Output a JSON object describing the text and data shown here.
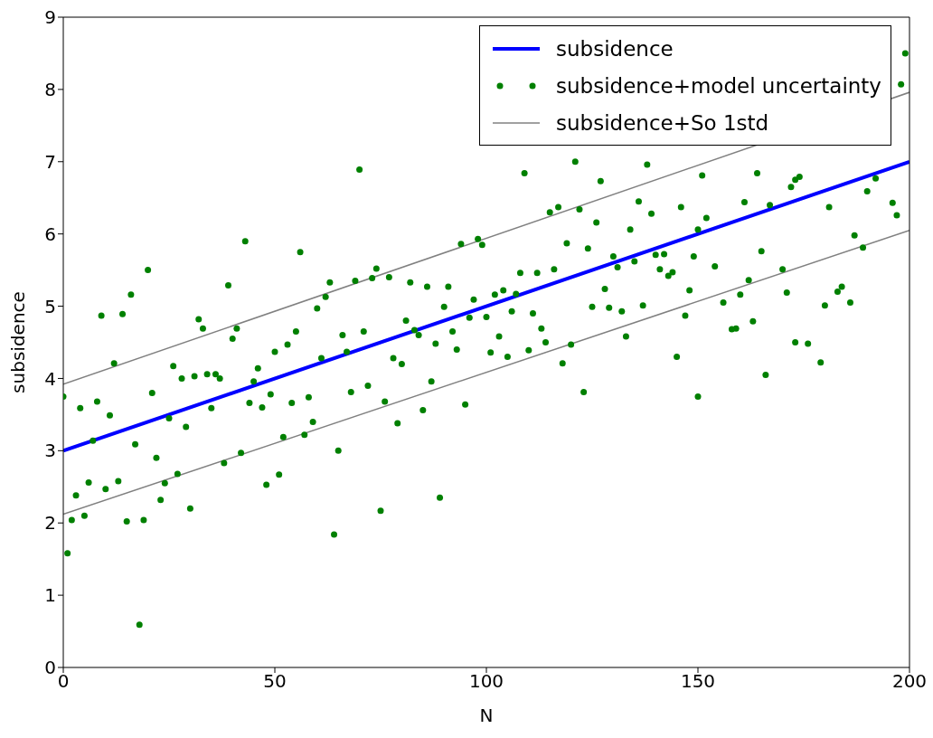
{
  "chart_data": {
    "type": "scatter",
    "xlabel": "N",
    "ylabel": "subsidence",
    "xlim": [
      0,
      200
    ],
    "ylim": [
      0,
      9
    ],
    "xticks": [
      0,
      50,
      100,
      150,
      200
    ],
    "yticks": [
      0,
      1,
      2,
      3,
      4,
      5,
      6,
      7,
      8,
      9
    ],
    "grid": false,
    "legend": "top right",
    "series": [
      {
        "name": "subsidence",
        "type": "line",
        "color": "#0000ff",
        "x": [
          0,
          200
        ],
        "values": [
          3,
          7
        ]
      },
      {
        "name": "subsidence+model uncertainty",
        "marker": "circle",
        "color": "#008000",
        "x": [
          0,
          1,
          2,
          3,
          4,
          5,
          6,
          7,
          8,
          9,
          10,
          11,
          12,
          13,
          14,
          15,
          16,
          17,
          18,
          19,
          20,
          21,
          22,
          23,
          24,
          25,
          26,
          27,
          28,
          29,
          30,
          31,
          32,
          33,
          34,
          35,
          36,
          37,
          38,
          39,
          40,
          41,
          42,
          43,
          44,
          45,
          46,
          47,
          48,
          49,
          50,
          51,
          52,
          53,
          54,
          55,
          56,
          57,
          58,
          59,
          60,
          61,
          62,
          63,
          64,
          65,
          66,
          67,
          68,
          69,
          70,
          71,
          72,
          73,
          74,
          75,
          76,
          77,
          78,
          79,
          80,
          81,
          82,
          83,
          84,
          85,
          86,
          87,
          88,
          89,
          90,
          91,
          92,
          93,
          94,
          95,
          96,
          97,
          98,
          99,
          100,
          101,
          102,
          103,
          104,
          105,
          106,
          107,
          108,
          109,
          110,
          111,
          112,
          113,
          114,
          115,
          116,
          117,
          118,
          119,
          120,
          121,
          122,
          123,
          124,
          125,
          126,
          127,
          128,
          129,
          130,
          131,
          132,
          133,
          134,
          135,
          136,
          137,
          138,
          139,
          140,
          141,
          142,
          143,
          144,
          145,
          146,
          147,
          148,
          149,
          150,
          150,
          151,
          152,
          154,
          156,
          158,
          159,
          160,
          161,
          162,
          163,
          164,
          165,
          166,
          167,
          170,
          171,
          172,
          173,
          173,
          174,
          176,
          179,
          180,
          181,
          183,
          184,
          186,
          187,
          189,
          190,
          192,
          196,
          197,
          198,
          199
        ],
        "values": [
          3.75,
          1.58,
          2.04,
          2.38,
          3.59,
          2.1,
          2.56,
          3.14,
          3.68,
          4.87,
          2.47,
          3.49,
          4.21,
          2.58,
          4.89,
          2.02,
          5.16,
          3.09,
          0.59,
          2.04,
          5.5,
          3.8,
          2.9,
          2.32,
          2.55,
          3.45,
          4.17,
          2.68,
          4.0,
          3.33,
          2.2,
          4.03,
          4.82,
          4.69,
          4.06,
          3.59,
          4.06,
          4.0,
          2.83,
          5.29,
          4.55,
          4.69,
          2.97,
          5.9,
          3.66,
          3.96,
          4.14,
          3.6,
          2.53,
          3.78,
          4.37,
          2.67,
          3.19,
          4.47,
          3.66,
          4.65,
          5.75,
          3.22,
          3.74,
          3.4,
          4.97,
          4.28,
          5.13,
          5.33,
          1.84,
          3.0,
          4.6,
          4.37,
          3.81,
          5.35,
          6.89,
          4.65,
          3.9,
          5.39,
          5.52,
          2.17,
          3.68,
          5.4,
          4.28,
          3.38,
          4.2,
          4.8,
          5.33,
          4.67,
          4.6,
          3.56,
          5.27,
          3.96,
          4.48,
          2.35,
          4.99,
          5.27,
          4.65,
          4.4,
          5.86,
          3.64,
          4.84,
          5.09,
          5.93,
          5.85,
          4.85,
          4.36,
          5.16,
          4.58,
          5.22,
          4.3,
          4.93,
          5.17,
          5.46,
          6.84,
          4.39,
          4.9,
          5.46,
          4.69,
          4.5,
          6.3,
          5.51,
          6.37,
          4.21,
          5.87,
          4.47,
          7.0,
          6.34,
          3.81,
          5.8,
          4.99,
          6.16,
          6.73,
          5.24,
          4.98,
          5.69,
          5.54,
          4.93,
          4.58,
          6.06,
          5.62,
          6.45,
          5.01,
          6.96,
          6.28,
          5.71,
          5.51,
          5.72,
          5.42,
          5.47,
          4.3,
          6.37,
          4.87,
          5.22,
          5.69,
          6.06,
          3.75,
          6.81,
          6.22,
          5.55,
          5.05,
          4.68,
          4.69,
          5.16,
          6.44,
          5.36,
          4.79,
          6.84,
          5.76,
          4.05,
          6.4,
          5.51,
          5.19,
          6.65,
          6.75,
          4.5,
          6.79,
          4.48,
          4.22,
          5.01,
          6.37,
          5.2,
          5.27,
          5.05,
          5.98,
          5.81,
          6.59,
          6.77,
          6.43,
          6.26,
          8.07,
          8.5
        ]
      },
      {
        "name": "subsidence+So 1std",
        "type": "line",
        "color": "#808080",
        "x": [
          0,
          200
        ],
        "values": [
          3.92,
          7.96
        ]
      },
      {
        "type": "line",
        "color": "#808080",
        "x": [
          0,
          200
        ],
        "values": [
          2.12,
          6.05
        ]
      }
    ]
  }
}
